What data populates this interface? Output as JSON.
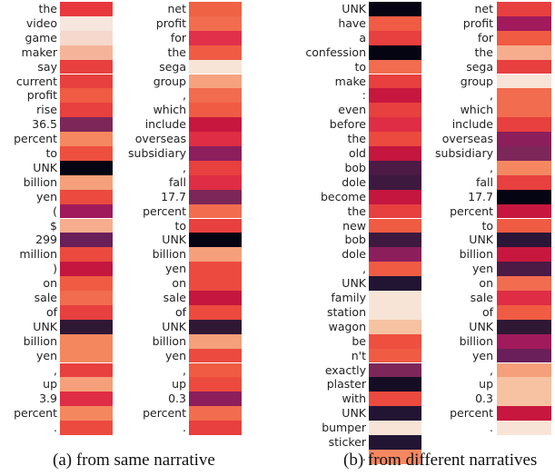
{
  "panels": [
    {
      "caption": "(a) from same narrative",
      "columns": [
        {
          "tokens": [
            "the",
            "video",
            "game",
            "maker",
            "say",
            "current",
            "profit",
            "rise",
            "36.5",
            "percent",
            "to",
            "UNK",
            "billion",
            "yen",
            "(",
            "$",
            "299",
            "million",
            ")",
            "on",
            "sale",
            "of",
            "UNK",
            "billion",
            "yen",
            ",",
            "up",
            "3.9",
            "percent",
            "."
          ],
          "colors": [
            "#e8383d",
            "#f7e6dd",
            "#f6d9cc",
            "#f5b49a",
            "#e83f3f",
            "#e83f3f",
            "#f05b43",
            "#e83f3f",
            "#7d2659",
            "#f58860",
            "#ee4f3f",
            "#050412",
            "#f5a07a",
            "#ec4a3f",
            "#a11a5b",
            "#f6ad8e",
            "#6a1f5a",
            "#ec4a3f",
            "#c4163f",
            "#f05b43",
            "#f26c4f",
            "#e83f3f",
            "#301734",
            "#f4875e",
            "#f4875e",
            "#e83f3f",
            "#f5a07a",
            "#de2d44",
            "#f4875e",
            "#ec4a3f"
          ]
        },
        {
          "tokens": [
            "net",
            "profit",
            "for",
            "the",
            "sega",
            "group",
            ",",
            "which",
            "include",
            "overseas",
            "subsidiary",
            ",",
            "fall",
            "17.7",
            "percent",
            "to",
            "UNK",
            "billion",
            "yen",
            "on",
            "sale",
            "of",
            "UNK",
            "billion",
            "yen",
            ",",
            "up",
            "0.3",
            "percent",
            "."
          ],
          "colors": [
            "#ef6243",
            "#f26c4f",
            "#e1304a",
            "#f05b43",
            "#f8e4d6",
            "#f6a27f",
            "#f26c4f",
            "#f05b43",
            "#c8173e",
            "#de2d44",
            "#8c1e5c",
            "#e83f3f",
            "#de2d44",
            "#7d2659",
            "#f26c4f",
            "#e83f3f",
            "#050412",
            "#f5a07a",
            "#ec4a3f",
            "#ec4a3f",
            "#c4163f",
            "#ec4a3f",
            "#301734",
            "#f5a07a",
            "#ec4a3f",
            "#f05b43",
            "#ec4a3f",
            "#8c1e5c",
            "#f26c4f",
            "#e83f3f"
          ]
        }
      ]
    },
    {
      "caption": "(b) from different narratives",
      "columns": [
        {
          "tokens": [
            "UNK",
            "have",
            "a",
            "confession",
            "to",
            "make",
            ":",
            "even",
            "before",
            "the",
            "old",
            "bob",
            "dole",
            "become",
            "the",
            "new",
            "bob",
            "dole",
            ",",
            "UNK",
            "family",
            "station",
            "wagon",
            "be",
            "n't",
            "exactly",
            "plaster",
            "with",
            "UNK",
            "bumper",
            "sticker",
            "."
          ],
          "colors": [
            "#050412",
            "#f05b43",
            "#e83f3f",
            "#050412",
            "#f26c4f",
            "#e83f3f",
            "#c8173e",
            "#e83f3f",
            "#de2d44",
            "#ec4a3f",
            "#c4163f",
            "#4b1a45",
            "#3d193f",
            "#c4163f",
            "#e83f3f",
            "#f05b43",
            "#3d193f",
            "#8c1e5c",
            "#f05b43",
            "#221533",
            "#f8e4d6",
            "#f8e4d6",
            "#f6c2a2",
            "#ee4f3f",
            "#f05b43",
            "#7d2659",
            "#150d24",
            "#ec4a3f",
            "#221533",
            "#f8e4d6",
            "#221533",
            "#f58860"
          ]
        },
        {
          "tokens": [
            "net",
            "profit",
            "for",
            "the",
            "sega",
            "group",
            ",",
            "which",
            "include",
            "overseas",
            "subsidiary",
            ",",
            "fall",
            "17.7",
            "percent",
            "to",
            "UNK",
            "billion",
            "yen",
            "on",
            "sale",
            "of",
            "UNK",
            "billion",
            "yen",
            ",",
            "up",
            "0.3",
            "percent",
            "."
          ],
          "colors": [
            "#e83f3f",
            "#a11a5b",
            "#f05b43",
            "#f6ad8e",
            "#e83f3f",
            "#f8e4d6",
            "#f26c4f",
            "#f26c4f",
            "#e83f3f",
            "#8c1e5c",
            "#7d2659",
            "#f58860",
            "#e83f3f",
            "#050412",
            "#c8173e",
            "#f05b43",
            "#2b1638",
            "#c8173e",
            "#4b1a45",
            "#f26c4f",
            "#de2d44",
            "#f05b43",
            "#301734",
            "#a11a5b",
            "#6a1f5a",
            "#f5a07a",
            "#f6c2a2",
            "#f6c2a2",
            "#c8173e",
            "#f8e4d6"
          ]
        }
      ]
    }
  ]
}
